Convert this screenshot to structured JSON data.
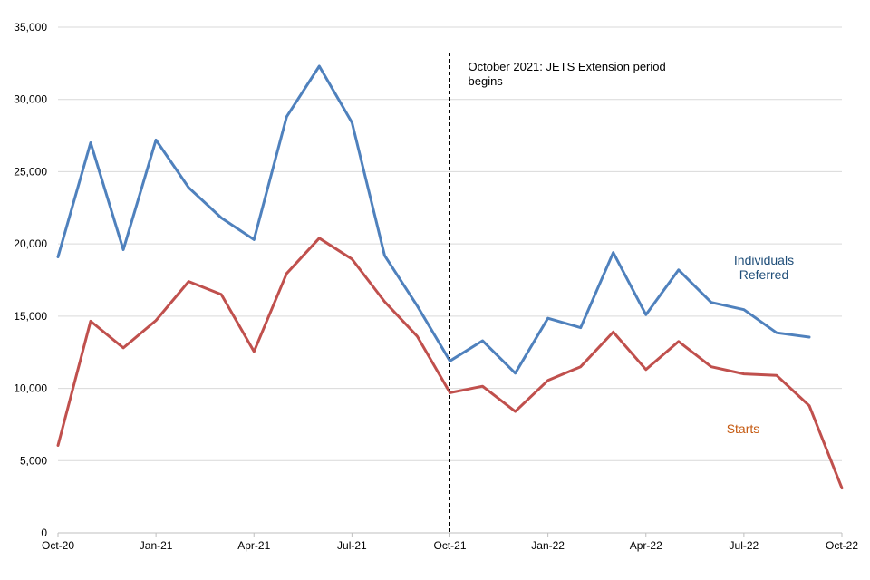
{
  "chart_data": {
    "type": "line",
    "title": "",
    "xlabel": "",
    "ylabel": "",
    "ylim": [
      0,
      35000
    ],
    "yticks": [
      0,
      5000,
      10000,
      15000,
      20000,
      25000,
      30000,
      35000
    ],
    "ytick_labels": [
      "0",
      "5,000",
      "10,000",
      "15,000",
      "20,000",
      "25,000",
      "30,000",
      "35,000"
    ],
    "x": [
      "Oct-20",
      "Nov-20",
      "Dec-20",
      "Jan-21",
      "Feb-21",
      "Mar-21",
      "Apr-21",
      "May-21",
      "Jun-21",
      "Jul-21",
      "Aug-21",
      "Sep-21",
      "Oct-21",
      "Nov-21",
      "Dec-21",
      "Jan-22",
      "Feb-22",
      "Mar-22",
      "Apr-22",
      "May-22",
      "Jun-22",
      "Jul-22",
      "Aug-22",
      "Sep-22",
      "Oct-22"
    ],
    "xticks": [
      {
        "index": 0,
        "label": "Oct-20"
      },
      {
        "index": 3,
        "label": "Jan-21"
      },
      {
        "index": 6,
        "label": "Apr-21"
      },
      {
        "index": 9,
        "label": "Jul-21"
      },
      {
        "index": 12,
        "label": "Oct-21"
      },
      {
        "index": 15,
        "label": "Jan-22"
      },
      {
        "index": 18,
        "label": "Apr-22"
      },
      {
        "index": 21,
        "label": "Jul-22"
      },
      {
        "index": 24,
        "label": "Oct-22"
      }
    ],
    "grid": {
      "horizontal": true,
      "vertical": false
    },
    "series": [
      {
        "name": "Individuals Referred",
        "label_lines": [
          "Individuals",
          "Referred"
        ],
        "color": "#4f81bd",
        "label_color": "#1f4e79",
        "values": [
          19100,
          27000,
          19600,
          27200,
          23900,
          21800,
          20300,
          28800,
          32300,
          28400,
          19200,
          15700,
          11900,
          13300,
          11050,
          14850,
          14200,
          19400,
          15100,
          18200,
          15950,
          15450,
          13850,
          13550,
          null
        ]
      },
      {
        "name": "Starts",
        "label_lines": [
          "Starts"
        ],
        "color": "#c0504d",
        "label_color": "#c55a11",
        "values": [
          6050,
          14650,
          12800,
          14700,
          17400,
          16500,
          12550,
          17950,
          20400,
          18950,
          16000,
          13600,
          9700,
          10150,
          8400,
          10550,
          11500,
          13900,
          11300,
          13250,
          11500,
          11000,
          10900,
          8800,
          3100
        ]
      }
    ],
    "annotations": [
      {
        "type": "vline",
        "x_index": 12,
        "style": "dashed",
        "text_lines": [
          "October 2021: JETS Extension period",
          "begins"
        ]
      }
    ],
    "legend": "inline-labels"
  }
}
